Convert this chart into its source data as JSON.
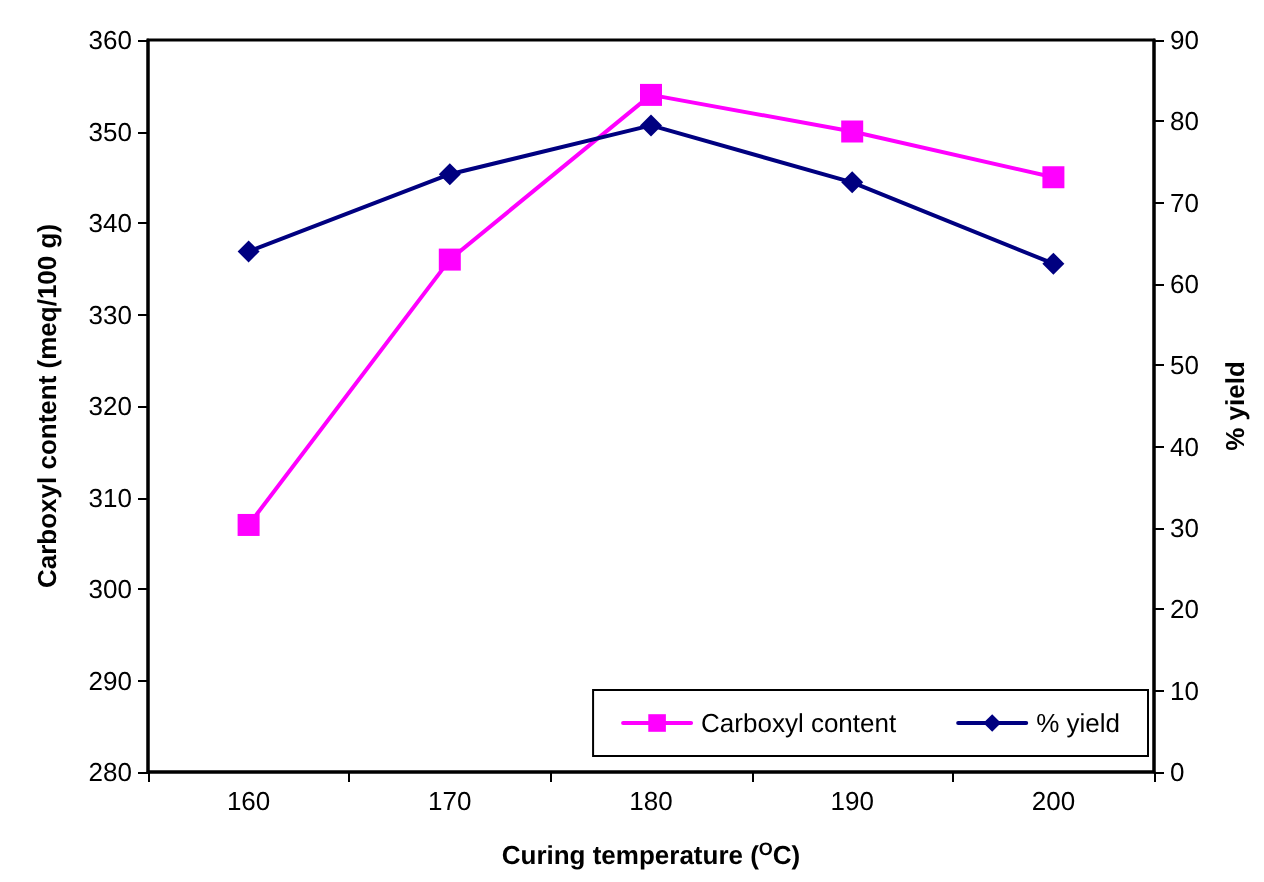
{
  "chart_data": {
    "type": "line",
    "xlabel": "Curing temperature ($^{O}$C)",
    "ylabel": "Carboxyl content (meq/100 g)",
    "y2label": "% yield",
    "categories": [
      "160",
      "170",
      "180",
      "190",
      "200"
    ],
    "series": [
      {
        "name": "Carboxyl content",
        "color": "#ff00ff",
        "marker": "square",
        "values": [
          307,
          336,
          354,
          350,
          345
        ]
      },
      {
        "name": "% yield",
        "color": "#000080",
        "marker": "diamond",
        "axis": "y2",
        "values": [
          64,
          73.5,
          79.5,
          72.5,
          62.5
        ]
      }
    ],
    "ylim": [
      280,
      360
    ],
    "yticks": [
      280,
      290,
      300,
      310,
      320,
      330,
      340,
      350,
      360
    ],
    "y2lim": [
      0,
      90
    ],
    "y2ticks": [
      0,
      10,
      20,
      30,
      40,
      50,
      60,
      70,
      80,
      90
    ],
    "legend": "bottom right",
    "grid": false,
    "line_style": "solid"
  }
}
